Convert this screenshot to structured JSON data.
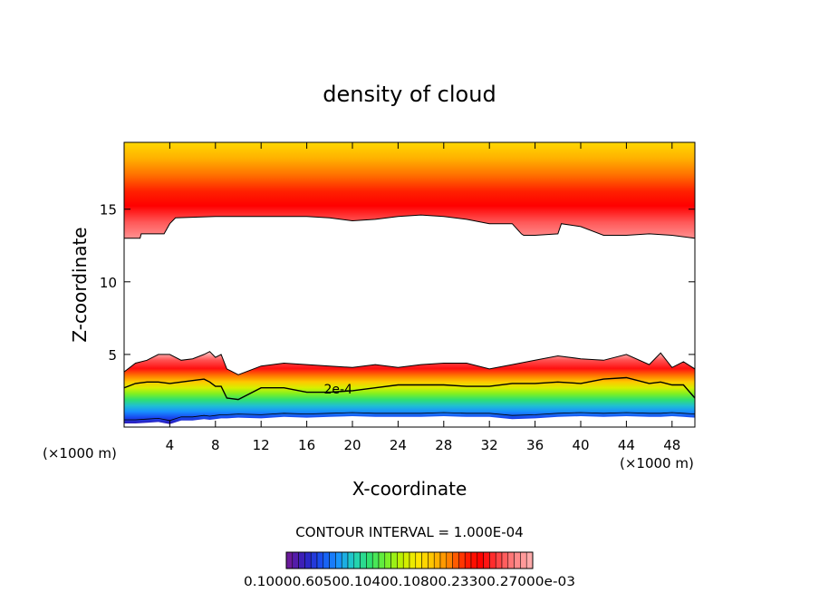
{
  "chart_data": {
    "type": "heatmap",
    "title": "density of cloud",
    "xlabel": "X-coordinate",
    "ylabel": "Z-coordinate",
    "x_unit_left": "(×1000 m)",
    "x_unit_right": "(×1000 m)",
    "xlim": [
      0,
      50
    ],
    "ylim": [
      0,
      19.6
    ],
    "x_ticks": [
      4,
      8,
      12,
      16,
      20,
      24,
      28,
      32,
      36,
      40,
      44,
      48
    ],
    "x_tick_labels": [
      "4",
      "8",
      "12",
      "16",
      "20",
      "24",
      "28",
      "32",
      "36",
      "40",
      "44",
      "48"
    ],
    "y_ticks": [
      5,
      10,
      15
    ],
    "y_tick_labels": [
      "5",
      "10",
      "15"
    ],
    "contour_interval_text": "CONTOUR INTERVAL = 1.000E-04",
    "contour_labels": [
      {
        "x": 17.5,
        "z": 2.3,
        "text": "2e-4"
      }
    ],
    "colorbar_labels_text": "0.10000.60500.10400.10800.23300.27000e-03",
    "upper_layer": {
      "top_z": 19.6,
      "core_z": 15.8,
      "base_x": [
        0,
        1.4,
        1.5,
        3.5,
        4,
        4.5,
        8,
        12,
        16,
        18,
        20,
        22,
        24,
        26,
        28,
        30,
        32,
        34,
        34.8,
        35,
        36,
        38,
        38.3,
        40,
        42,
        44,
        46,
        48,
        50
      ],
      "base_z": [
        13.0,
        13.0,
        13.3,
        13.3,
        14.0,
        14.4,
        14.5,
        14.5,
        14.5,
        14.4,
        14.2,
        14.3,
        14.5,
        14.6,
        14.5,
        14.3,
        14.0,
        14.0,
        13.3,
        13.2,
        13.2,
        13.3,
        14.0,
        13.8,
        13.2,
        13.2,
        13.3,
        13.2,
        13.0
      ]
    },
    "lower_layer": {
      "top_x": [
        0,
        1,
        2,
        3,
        4,
        5,
        6,
        7,
        7.5,
        8,
        8.5,
        9,
        10,
        12,
        14,
        16,
        18,
        20,
        22,
        24,
        26,
        28,
        30,
        32,
        34,
        36,
        38,
        40,
        42,
        44,
        46,
        47,
        48,
        49,
        50
      ],
      "top_z": [
        3.8,
        4.4,
        4.6,
        5.0,
        5.0,
        4.6,
        4.7,
        5.0,
        5.2,
        4.8,
        5.0,
        4.0,
        3.6,
        4.2,
        4.4,
        4.3,
        4.2,
        4.1,
        4.3,
        4.1,
        4.3,
        4.4,
        4.4,
        4.0,
        4.3,
        4.6,
        4.9,
        4.7,
        4.6,
        5.0,
        4.3,
        5.1,
        4.1,
        4.5,
        4.0
      ],
      "contour_2e4_z": [
        2.7,
        3.0,
        3.1,
        3.1,
        3.0,
        3.1,
        3.2,
        3.3,
        3.1,
        2.8,
        2.8,
        2.0,
        1.9,
        2.7,
        2.7,
        2.4,
        2.4,
        2.5,
        2.7,
        2.9,
        2.9,
        2.9,
        2.8,
        2.8,
        3.0,
        3.0,
        3.1,
        3.0,
        3.3,
        3.4,
        3.0,
        3.1,
        2.9,
        2.9,
        2.0
      ],
      "bottom_z": [
        0.25,
        0.25,
        0.3,
        0.35,
        0.2,
        0.45,
        0.45,
        0.55,
        0.5,
        0.55,
        0.6,
        0.6,
        0.65,
        0.6,
        0.7,
        0.65,
        0.7,
        0.75,
        0.7,
        0.7,
        0.7,
        0.75,
        0.7,
        0.7,
        0.55,
        0.6,
        0.7,
        0.75,
        0.7,
        0.75,
        0.7,
        0.7,
        0.75,
        0.7,
        0.65
      ]
    },
    "colors": {
      "background": "#ffffff",
      "axes": "#000000",
      "ramp": [
        "#6a1a9a",
        "#3020c0",
        "#1850f0",
        "#1890ff",
        "#20d0c0",
        "#30e070",
        "#70f030",
        "#c0f000",
        "#ffe800",
        "#ffc000",
        "#ff8000",
        "#ff2000",
        "#ff0000",
        "#ff4040",
        "#ff8080",
        "#ffaaaa"
      ]
    }
  }
}
